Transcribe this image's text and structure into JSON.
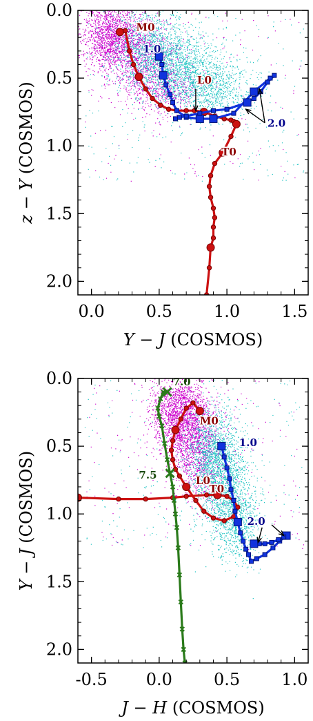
{
  "colors": {
    "magenta": "#cc00cc",
    "cyan": "#22c4c4",
    "red": "#cc1111",
    "red_edge": "#770000",
    "blue": "#1133dd",
    "blue_edge": "#001177",
    "green": "#2a7a1a",
    "label_red": "#8b0000",
    "label_blue": "#00008b",
    "label_green": "#1a4a0a"
  },
  "chart_data": [
    {
      "type": "scatter",
      "xlabel_italic": "Y − J",
      "xlabel_rest": " (COSMOS)",
      "ylabel_italic": "z − Y",
      "ylabel_rest": " (COSMOS)",
      "xlim": [
        -0.1,
        1.6
      ],
      "ylim": [
        2.1,
        0.0
      ],
      "y_inverted": true,
      "xticks": [
        0.0,
        0.5,
        1.0,
        1.5
      ],
      "xtick_labels": [
        "0.0",
        "0.5",
        "1.0",
        "1.5"
      ],
      "yticks": [
        0.0,
        0.5,
        1.0,
        1.5,
        2.0
      ],
      "ytick_labels": [
        "0.0",
        "0.5",
        "1.0",
        "1.5",
        "2.0"
      ],
      "clouds": [
        {
          "color_key": "magenta",
          "blobs": [
            {
              "cx": 0.15,
              "cy": 0.18,
              "sx": 0.12,
              "sy": 0.12,
              "n": 1500
            },
            {
              "cx": 0.34,
              "cy": 0.35,
              "sx": 0.14,
              "sy": 0.15,
              "n": 900
            },
            {
              "cx": 0.55,
              "cy": 0.58,
              "sx": 0.12,
              "sy": 0.1,
              "n": 500
            }
          ],
          "sparse": 160
        },
        {
          "color_key": "cyan",
          "blobs": [
            {
              "cx": 0.45,
              "cy": 0.3,
              "sx": 0.15,
              "sy": 0.15,
              "n": 1300
            },
            {
              "cx": 0.68,
              "cy": 0.45,
              "sx": 0.16,
              "sy": 0.13,
              "n": 1000
            },
            {
              "cx": 0.9,
              "cy": 0.58,
              "sx": 0.15,
              "sy": 0.11,
              "n": 700
            }
          ],
          "sparse": 260
        }
      ],
      "series": [
        {
          "color_key": "red",
          "marker": "circle",
          "x": [
            0.21,
            0.25,
            0.28,
            0.31,
            0.35,
            0.4,
            0.45,
            0.51,
            0.57,
            0.63,
            0.7,
            0.76,
            0.83,
            0.91,
            0.98,
            1.03,
            1.05,
            1.07,
            1.03,
            0.97,
            0.91,
            0.88,
            0.87,
            0.88,
            0.9,
            0.91,
            0.9,
            0.9,
            0.88,
            0.87,
            0.85
          ],
          "y": [
            0.16,
            0.15,
            0.3,
            0.4,
            0.49,
            0.58,
            0.65,
            0.7,
            0.73,
            0.74,
            0.74,
            0.74,
            0.75,
            0.78,
            0.8,
            0.81,
            0.82,
            0.84,
            0.93,
            1.05,
            1.13,
            1.22,
            1.3,
            1.38,
            1.46,
            1.53,
            1.6,
            1.68,
            1.75,
            1.9,
            2.1
          ],
          "big_idx": [
            0,
            4,
            12,
            17,
            19,
            28
          ]
        },
        {
          "color_key": "blue",
          "marker": "square",
          "x": [
            0.5,
            0.52,
            0.53,
            0.55,
            0.58,
            0.6,
            0.63,
            0.7,
            0.8,
            0.9,
            1.05,
            1.2,
            1.32,
            1.35,
            1.3,
            1.25,
            1.2,
            1.15,
            1.0,
            0.9,
            0.8,
            0.7,
            0.65,
            0.62
          ],
          "y": [
            0.34,
            0.4,
            0.48,
            0.55,
            0.62,
            0.68,
            0.74,
            0.79,
            0.8,
            0.8,
            0.76,
            0.6,
            0.5,
            0.48,
            0.53,
            0.6,
            0.65,
            0.68,
            0.73,
            0.74,
            0.76,
            0.78,
            0.79,
            0.8
          ],
          "big_idx": [
            0,
            2,
            8,
            9,
            11,
            17
          ]
        }
      ],
      "annotations": [
        {
          "text": "M0",
          "x": 0.33,
          "y": 0.15,
          "color_key": "label_red"
        },
        {
          "text": "1.0",
          "x": 0.38,
          "y": 0.31,
          "color_key": "label_blue"
        },
        {
          "text": "L0",
          "x": 0.78,
          "y": 0.54,
          "color_key": "label_red"
        },
        {
          "text": "2.0",
          "x": 1.3,
          "y": 0.86,
          "color_key": "label_blue"
        },
        {
          "text": "T0",
          "x": 0.96,
          "y": 1.07,
          "color_key": "label_red"
        }
      ],
      "arrows": [
        {
          "from": [
            0.77,
            0.58
          ],
          "to": [
            0.77,
            0.74
          ]
        },
        {
          "from": [
            1.28,
            0.83
          ],
          "to": [
            1.14,
            0.73
          ]
        },
        {
          "from": [
            1.28,
            0.83
          ],
          "to": [
            1.24,
            0.58
          ]
        }
      ]
    },
    {
      "type": "scatter",
      "xlabel_italic": "J − H",
      "xlabel_rest": " (COSMOS)",
      "ylabel_italic": "Y − J",
      "ylabel_rest": " (COSMOS)",
      "xlim": [
        -0.6,
        1.1
      ],
      "ylim": [
        2.1,
        0.0
      ],
      "y_inverted": true,
      "xticks": [
        -0.5,
        0.0,
        0.5,
        1.0
      ],
      "xtick_labels": [
        "-0.5",
        "0.0",
        "0.5",
        "1.0"
      ],
      "yticks": [
        0.0,
        0.5,
        1.0,
        1.5,
        2.0
      ],
      "ytick_labels": [
        "0.0",
        "0.5",
        "1.0",
        "1.5",
        "2.0"
      ],
      "clouds": [
        {
          "color_key": "magenta",
          "blobs": [
            {
              "cx": 0.15,
              "cy": 0.25,
              "sx": 0.1,
              "sy": 0.14,
              "n": 1600
            },
            {
              "cx": 0.25,
              "cy": 0.45,
              "sx": 0.1,
              "sy": 0.14,
              "n": 900
            },
            {
              "cx": 0.33,
              "cy": 0.7,
              "sx": 0.1,
              "sy": 0.12,
              "n": 400
            }
          ],
          "sparse": 200
        },
        {
          "color_key": "cyan",
          "blobs": [
            {
              "cx": 0.4,
              "cy": 0.55,
              "sx": 0.1,
              "sy": 0.16,
              "n": 1300
            },
            {
              "cx": 0.5,
              "cy": 0.85,
              "sx": 0.1,
              "sy": 0.18,
              "n": 1000
            },
            {
              "cx": 0.58,
              "cy": 1.1,
              "sx": 0.08,
              "sy": 0.14,
              "n": 500
            }
          ],
          "sparse": 220
        }
      ],
      "series": [
        {
          "color_key": "red",
          "marker": "circle",
          "x": [
            0.3,
            0.25,
            0.2,
            0.16,
            0.12,
            0.1,
            0.09,
            0.1,
            0.12,
            0.15,
            0.2,
            0.27,
            0.33,
            0.4,
            0.48,
            0.55,
            0.58,
            0.55,
            0.5,
            0.43,
            0.35,
            0.2,
            0.1,
            -0.1,
            -0.3,
            -0.6
          ],
          "y": [
            0.24,
            0.18,
            0.22,
            0.3,
            0.38,
            0.46,
            0.53,
            0.6,
            0.67,
            0.72,
            0.8,
            0.9,
            0.98,
            1.03,
            1.05,
            1.02,
            0.95,
            0.9,
            0.87,
            0.86,
            0.86,
            0.87,
            0.88,
            0.89,
            0.89,
            0.88
          ],
          "big_idx": [
            0,
            4,
            10,
            19,
            25
          ]
        },
        {
          "color_key": "blue",
          "marker": "square",
          "x": [
            0.46,
            0.48,
            0.5,
            0.52,
            0.53,
            0.55,
            0.56,
            0.58,
            0.6,
            0.62,
            0.64,
            0.66,
            0.68,
            0.72,
            0.78,
            0.84,
            0.89,
            0.94,
            0.92,
            0.88,
            0.83,
            0.78,
            0.74,
            0.7
          ],
          "y": [
            0.5,
            0.58,
            0.66,
            0.74,
            0.82,
            0.9,
            0.98,
            1.06,
            1.14,
            1.2,
            1.26,
            1.3,
            1.35,
            1.33,
            1.3,
            1.25,
            1.2,
            1.16,
            1.17,
            1.19,
            1.21,
            1.22,
            1.22,
            1.22
          ],
          "big_idx": [
            0,
            7,
            17,
            23
          ]
        },
        {
          "color_key": "green",
          "marker": "x",
          "x": [
            0.06,
            0.03,
            0.01,
            -0.01,
            0.0,
            0.02,
            0.04,
            0.06,
            0.08,
            0.1,
            0.11,
            0.12,
            0.13,
            0.14,
            0.15,
            0.16,
            0.17,
            0.18,
            0.19
          ],
          "y": [
            0.1,
            0.1,
            0.15,
            0.22,
            0.28,
            0.35,
            0.48,
            0.6,
            0.7,
            0.8,
            0.9,
            1.0,
            1.1,
            1.25,
            1.45,
            1.65,
            1.85,
            2.0,
            2.1
          ],
          "big_idx": [
            0,
            8
          ]
        }
      ],
      "annotations": [
        {
          "text": "7.0",
          "x": 0.1,
          "y": 0.05,
          "color_key": "label_green"
        },
        {
          "text": "M0",
          "x": 0.3,
          "y": 0.34,
          "color_key": "label_red"
        },
        {
          "text": "1.0",
          "x": 0.59,
          "y": 0.5,
          "color_key": "label_blue"
        },
        {
          "text": "L0",
          "x": 0.27,
          "y": 0.78,
          "color_key": "label_red"
        },
        {
          "text": "T0",
          "x": 0.37,
          "y": 0.84,
          "color_key": "label_red"
        },
        {
          "text": "7.5",
          "x": -0.15,
          "y": 0.74,
          "color_key": "label_green"
        },
        {
          "text": "2.0",
          "x": 0.65,
          "y": 1.08,
          "color_key": "label_blue"
        }
      ],
      "arrows": [
        {
          "from": [
            0.76,
            1.1
          ],
          "to": [
            0.73,
            1.21
          ]
        },
        {
          "from": [
            0.83,
            1.08
          ],
          "to": [
            0.92,
            1.16
          ]
        }
      ]
    }
  ]
}
